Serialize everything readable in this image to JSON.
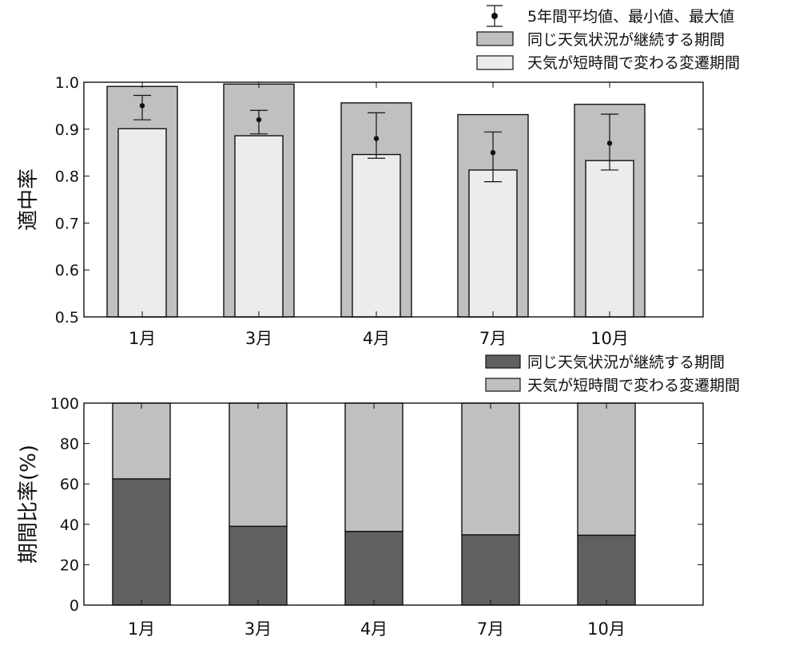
{
  "chart_data": [
    {
      "type": "bar",
      "categories": [
        "1月",
        "3月",
        "4月",
        "7月",
        "10月"
      ],
      "ylabel": "適中率",
      "ylim": [
        0.5,
        1.0
      ],
      "yticks": [
        0.5,
        0.6,
        0.7,
        0.8,
        0.9,
        1.0
      ],
      "grid": false,
      "legend_position": "top-right",
      "series": [
        {
          "name": "同じ天気状況が継続する期間",
          "kind": "bar",
          "color": "#c0c0c0",
          "values": [
            0.991,
            0.996,
            0.956,
            0.931,
            0.953
          ]
        },
        {
          "name": "天気が短時間で変わる変遷期間",
          "kind": "bar",
          "color": "#ececec",
          "values": [
            0.901,
            0.886,
            0.846,
            0.813,
            0.833
          ]
        },
        {
          "name": "5年間平均値、最小値、最大値",
          "kind": "errorbar",
          "color": "#111111",
          "mean": [
            0.95,
            0.92,
            0.88,
            0.85,
            0.87
          ],
          "min": [
            0.92,
            0.89,
            0.838,
            0.788,
            0.813
          ],
          "max": [
            0.972,
            0.94,
            0.935,
            0.894,
            0.932
          ]
        }
      ]
    },
    {
      "type": "bar",
      "stacked": true,
      "categories": [
        "1月",
        "3月",
        "4月",
        "7月",
        "10月"
      ],
      "ylabel": "期間比率(%)",
      "ylim": [
        0,
        100
      ],
      "yticks": [
        0,
        20,
        40,
        60,
        80,
        100
      ],
      "grid": false,
      "legend_position": "top-right",
      "series": [
        {
          "name": "同じ天気状況が継続する期間",
          "color": "#606060",
          "values": [
            62.5,
            39.0,
            36.5,
            34.8,
            34.6
          ]
        },
        {
          "name": "天気が短時間で変わる変遷期間",
          "color": "#c0c0c0",
          "values": [
            37.5,
            61.0,
            63.5,
            65.2,
            65.4
          ]
        }
      ]
    }
  ]
}
